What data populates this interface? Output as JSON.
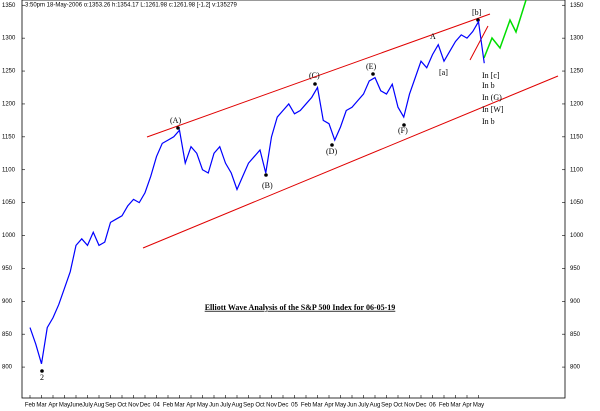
{
  "chart_data": {
    "type": "line",
    "title": "Elliott Wave Analysis of the S&P 500 Index for 06-05-19",
    "subtitle": "3:50pm 18-May-2006 o:1353.26 h:1354.17 L:1261.98 c:1261.98 [-1.2] v:135279",
    "categories": [
      "Feb",
      null,
      "Mar",
      null,
      "Apr",
      null,
      "May",
      null,
      "June",
      null,
      "July",
      null,
      "Aug",
      null,
      "Sep",
      null,
      "Oct",
      null,
      "Nov",
      null,
      "Dec",
      null,
      "04",
      null,
      "Feb",
      null,
      "Mar",
      null,
      "Apr",
      null,
      "May",
      null,
      "Jun",
      null,
      "July",
      null,
      "Aug",
      null,
      "Sep",
      null,
      "Oct",
      null,
      "Nov",
      null,
      "Dec",
      null,
      "05",
      null,
      "Feb",
      null,
      "Mar",
      null,
      "Apr",
      null,
      "May",
      null,
      "Jun",
      null,
      "July",
      null,
      "Aug",
      null,
      "Sep",
      null,
      "Oct",
      null,
      "Nov",
      null,
      "Dec",
      null,
      "06",
      null,
      "Feb",
      null,
      "Mar",
      null,
      "Apr",
      null,
      "May",
      null
    ],
    "series": [
      {
        "name": "S&P 500",
        "color": "#0000ff",
        "values": [
          860,
          835,
          805,
          860,
          875,
          895,
          920,
          945,
          985,
          995,
          985,
          1005,
          985,
          990,
          1020,
          1025,
          1030,
          1045,
          1055,
          1050,
          1065,
          1090,
          1120,
          1140,
          1145,
          1150,
          1160,
          1110,
          1135,
          1125,
          1100,
          1095,
          1125,
          1135,
          1110,
          1095,
          1070,
          1090,
          1110,
          1120,
          1130,
          1095,
          1150,
          1180,
          1190,
          1200,
          1185,
          1190,
          1200,
          1210,
          1225,
          1175,
          1170,
          1145,
          1165,
          1190,
          1195,
          1205,
          1215,
          1235,
          1240,
          1220,
          1215,
          1230,
          1195,
          1180,
          1215,
          1240,
          1265,
          1255,
          1275,
          1290,
          1265,
          1280,
          1295,
          1305,
          1300,
          1310,
          1325,
          1262
        ]
      }
    ],
    "ylim": [
      753,
      1358
    ],
    "yticks": [
      800,
      850,
      900,
      950,
      1000,
      1050,
      1100,
      1150,
      1200,
      1250,
      1300,
      1350
    ],
    "annotations": [
      "(A)",
      "(B)",
      "(C)",
      "(D)",
      "(E)",
      "(F)",
      "A",
      "[a]",
      "[b]",
      "2",
      "In [c]",
      "In b",
      "In (G)",
      "In [W]",
      "In b"
    ],
    "grid": false
  }
}
